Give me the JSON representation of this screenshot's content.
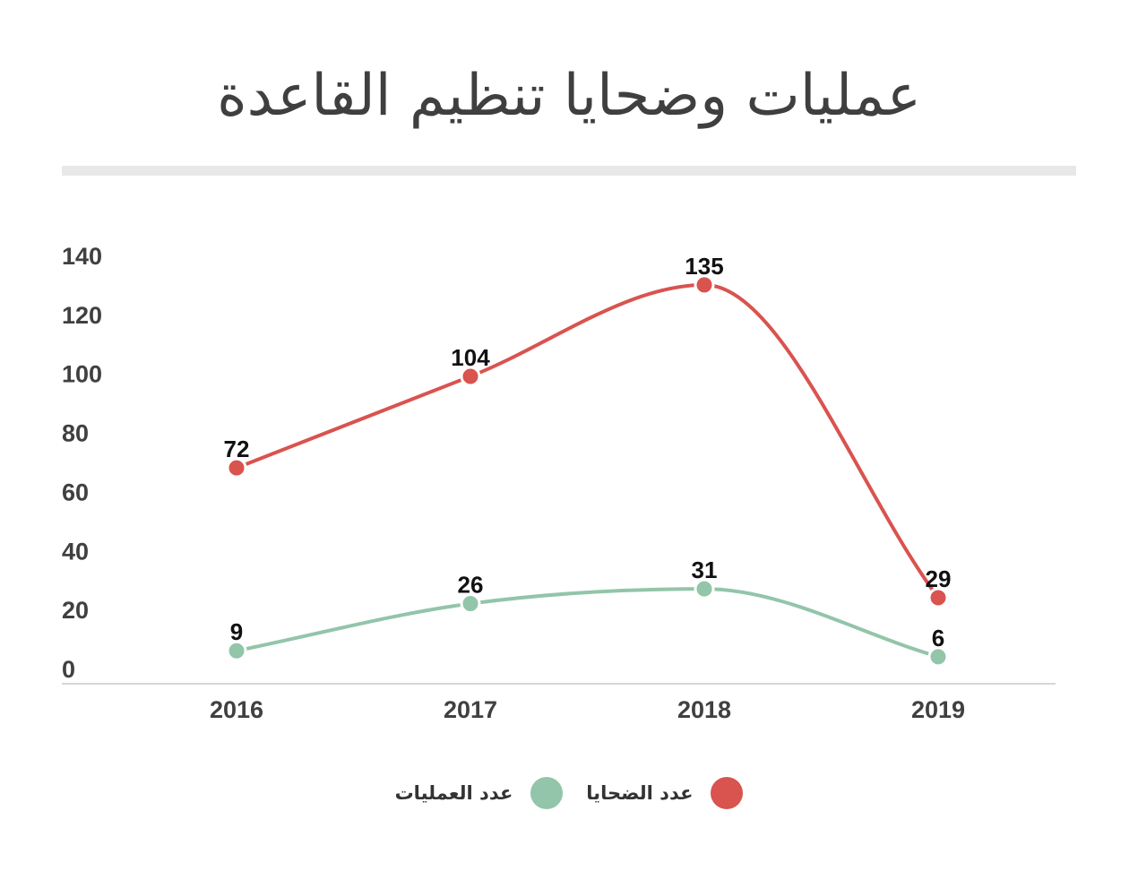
{
  "chart_data": {
    "type": "line",
    "title": "عمليات وضحايا تنظيم القاعدة",
    "categories": [
      "2016",
      "2017",
      "2018",
      "2019"
    ],
    "series": [
      {
        "name": "عدد الضحايا",
        "values": [
          72,
          104,
          135,
          29
        ],
        "plot_values": [
          68,
          99,
          130,
          24
        ],
        "color": "#d9534f"
      },
      {
        "name": "عدد العمليات",
        "values": [
          9,
          26,
          31,
          6
        ],
        "plot_values": [
          6,
          22,
          27,
          4
        ],
        "color": "#92c5a9"
      }
    ],
    "yticks": [
      0,
      20,
      40,
      60,
      80,
      100,
      120,
      140
    ],
    "ylim": [
      0,
      140
    ],
    "xlabel": "",
    "ylabel": "",
    "grid": false,
    "legend_position": "bottom-center",
    "smooth": true
  }
}
